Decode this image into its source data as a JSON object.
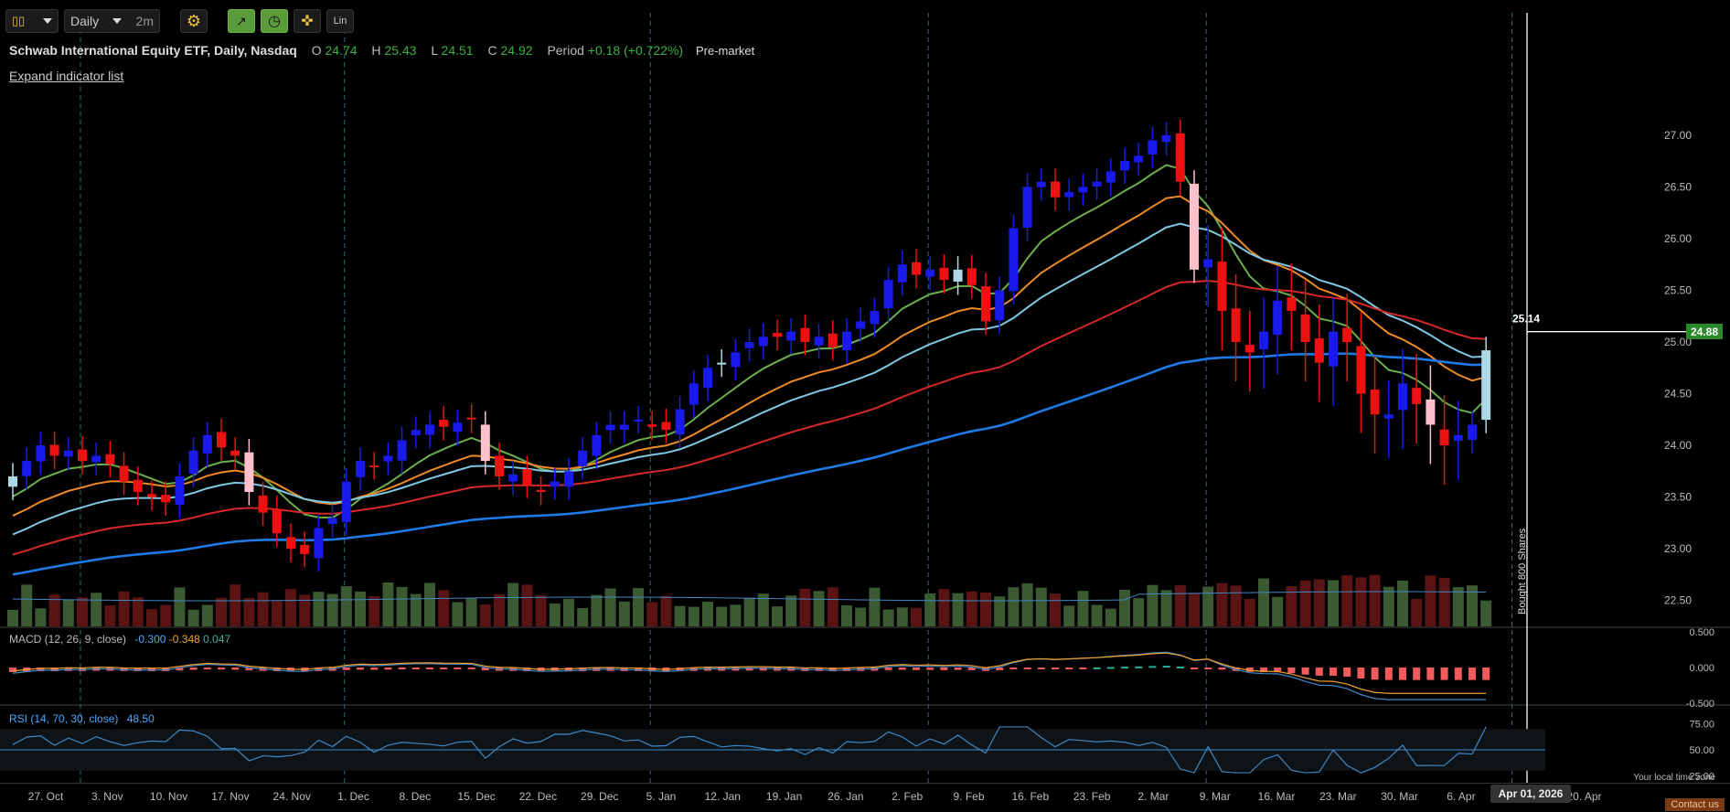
{
  "toolbar": {
    "chart_type_icon": "candlestick-icon",
    "period_label": "Daily",
    "range_label": "2m",
    "settings_icon": "gear-icon",
    "tool_icons": [
      "drawing-tool-icon",
      "clock-icon",
      "crosshair-icon"
    ],
    "scale_label": "Lin"
  },
  "legend": {
    "title": "Schwab International Equity ETF, Daily, Nasdaq",
    "o_label": "O",
    "o_value": "24.74",
    "h_label": "H",
    "h_value": "25.43",
    "l_label": "L",
    "l_value": "24.51",
    "c_label": "C",
    "c_value": "24.92",
    "period_label": "Period",
    "period_value": "+0.18 (+0.722%)",
    "session": "Pre-market"
  },
  "expand_label": "Expand indicator list",
  "macd": {
    "label": "MACD (12, 26, 9, close)",
    "v1": "-0.300",
    "v2": "-0.348",
    "v3": "0.047"
  },
  "rsi": {
    "label": "RSI (14, 70, 30, close)",
    "value": "48.50"
  },
  "timezone_label": "Your local time zone",
  "contact_label": "Contact us",
  "crosshair": {
    "date_label": "Apr 01, 2026",
    "price_label": "25.14"
  },
  "last_price": "24.88",
  "annotation": "Bought 800 Shares",
  "colors": {
    "up": "#1a1aee",
    "down": "#ee1111",
    "up_light": "#add8e6",
    "down_light": "#ffc0cb",
    "vol_up": "#3c5a32",
    "vol_down": "#5a1414"
  },
  "chart_data": {
    "type": "candlestick",
    "title": "Schwab International Equity ETF, Daily, Nasdaq",
    "y_ticks": [
      22.5,
      23.0,
      23.5,
      24.0,
      24.5,
      25.0,
      25.5,
      26.0,
      26.5,
      27.0
    ],
    "y_tick_labels": [
      "22.50",
      "23.00",
      "23.50",
      "24.00",
      "24.50",
      "25.00",
      "25.50",
      "26.00",
      "26.50",
      "27.00"
    ],
    "ylim": [
      22.25,
      27.6
    ],
    "x_tick_labels": [
      "27. Oct",
      "3. Nov",
      "10. Nov",
      "17. Nov",
      "24. Nov",
      "1. Dec",
      "8. Dec",
      "15. Dec",
      "22. Dec",
      "29. Dec",
      "5. Jan",
      "12. Jan",
      "19. Jan",
      "26. Jan",
      "2. Feb",
      "9. Feb",
      "16. Feb",
      "23. Feb",
      "2. Mar",
      "9. Mar",
      "16. Mar",
      "23. Mar",
      "30. Mar",
      "6. Apr",
      "13. Apr",
      "20. Apr"
    ],
    "month_starts": [
      "3. Nov",
      "1. Dec",
      "5. Jan",
      "2. Feb",
      "2. Mar",
      "1. Apr"
    ],
    "closes": [
      23.7,
      23.85,
      24.0,
      23.9,
      23.95,
      23.85,
      23.9,
      23.82,
      23.65,
      23.55,
      23.5,
      23.45,
      23.7,
      23.95,
      24.1,
      23.98,
      23.9,
      23.55,
      23.35,
      23.15,
      23.0,
      22.95,
      23.2,
      23.3,
      23.65,
      23.85,
      23.8,
      23.9,
      24.05,
      24.15,
      24.2,
      24.18,
      24.22,
      24.25,
      23.85,
      23.7,
      23.72,
      23.62,
      23.55,
      23.65,
      23.75,
      23.95,
      24.1,
      24.2,
      24.2,
      24.25,
      24.18,
      24.15,
      24.35,
      24.6,
      24.75,
      24.8,
      24.9,
      25.0,
      25.05,
      25.05,
      25.1,
      25.0,
      25.05,
      24.95,
      25.1,
      25.2,
      25.3,
      25.6,
      25.75,
      25.65,
      25.7,
      25.6,
      25.7,
      25.55,
      25.2,
      25.5,
      26.1,
      26.5,
      26.55,
      26.4,
      26.45,
      26.5,
      26.55,
      26.65,
      26.75,
      26.8,
      26.95,
      27.0,
      26.55,
      25.7,
      25.8,
      25.3,
      25.0,
      24.9,
      25.1,
      25.4,
      25.3,
      25.0,
      24.8,
      25.1,
      25.0,
      24.5,
      24.3,
      24.3,
      24.6,
      24.4,
      24.2,
      24.0,
      24.1,
      24.2,
      24.92
    ],
    "volumes_relative": "shown as bars proportional to daily volume",
    "series": [
      {
        "name": "EMA short",
        "color": "#6ab04c"
      },
      {
        "name": "EMA medium",
        "color": "#f08a24"
      },
      {
        "name": "EMA long",
        "color": "#7ec8e3"
      },
      {
        "name": "EMA 50",
        "color": "#d62828"
      },
      {
        "name": "EMA 100",
        "color": "#1e7ae6"
      }
    ],
    "macd_ticks": [
      "0.500",
      "0.000",
      "-0.500"
    ],
    "rsi_ticks": [
      "75.00",
      "50.00",
      "25.00"
    ]
  }
}
